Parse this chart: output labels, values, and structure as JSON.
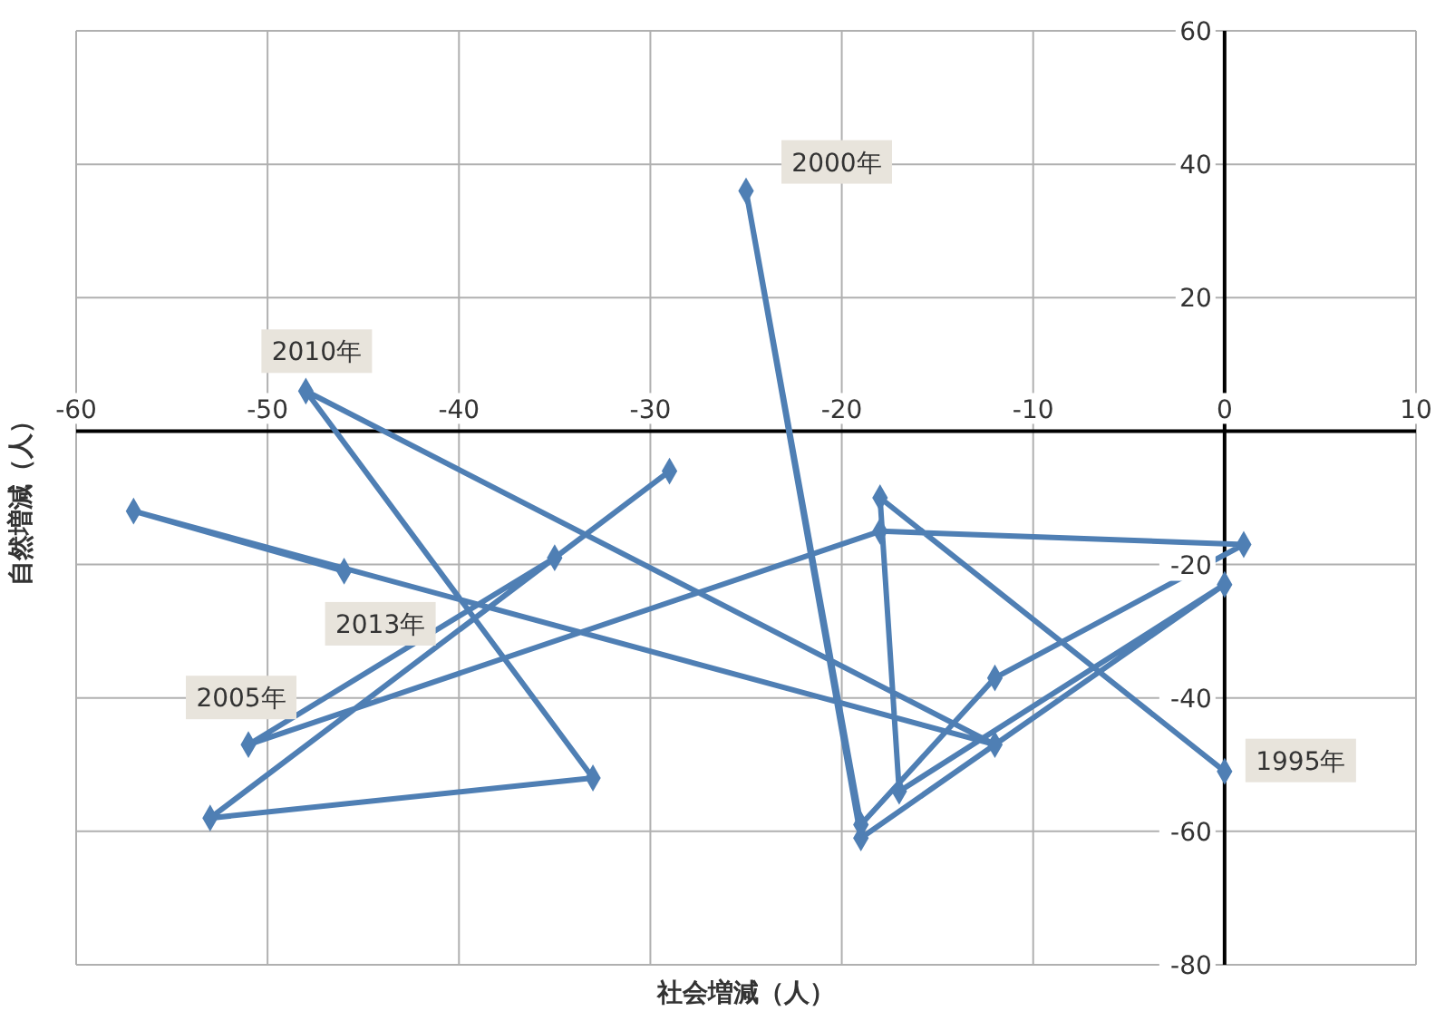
{
  "chart_data": {
    "type": "line",
    "xlabel": "社会増減（人）",
    "ylabel": "自然増減（人）",
    "series": [
      {
        "color": "#4f7fb4",
        "x": [
          0,
          -18,
          -17,
          0,
          -19,
          -25,
          -19,
          -12,
          1,
          -18,
          -51,
          -35,
          -29,
          -53,
          -33,
          -48,
          -12,
          -57,
          -46
        ],
        "values": [
          -51,
          -10,
          -54,
          -23,
          -61,
          36,
          -59,
          -37,
          -17,
          -15,
          -47,
          -19,
          -6,
          -58,
          -52,
          6,
          -47,
          -12,
          -21
        ]
      }
    ],
    "xlim": [
      -60,
      10
    ],
    "xticks": [
      -60,
      -50,
      -40,
      -30,
      -20,
      -10,
      0,
      10
    ],
    "ylim": [
      -80,
      60
    ],
    "yticks": [
      -80,
      -60,
      -40,
      -20,
      {
        "value": 0,
        "label": null
      },
      20,
      40,
      60
    ],
    "grid": true,
    "marker": "diamond",
    "line_style": "solid",
    "annotations": [
      {
        "text": "1995年",
        "x": 0,
        "y": -51
      },
      {
        "text": "2000年",
        "x": -25,
        "y": 36
      },
      {
        "text": "2005年",
        "x": -51,
        "y": -47
      },
      {
        "text": "2010年",
        "x": -48,
        "y": 6
      },
      {
        "text": "2013年",
        "x": -46,
        "y": -21
      }
    ]
  }
}
